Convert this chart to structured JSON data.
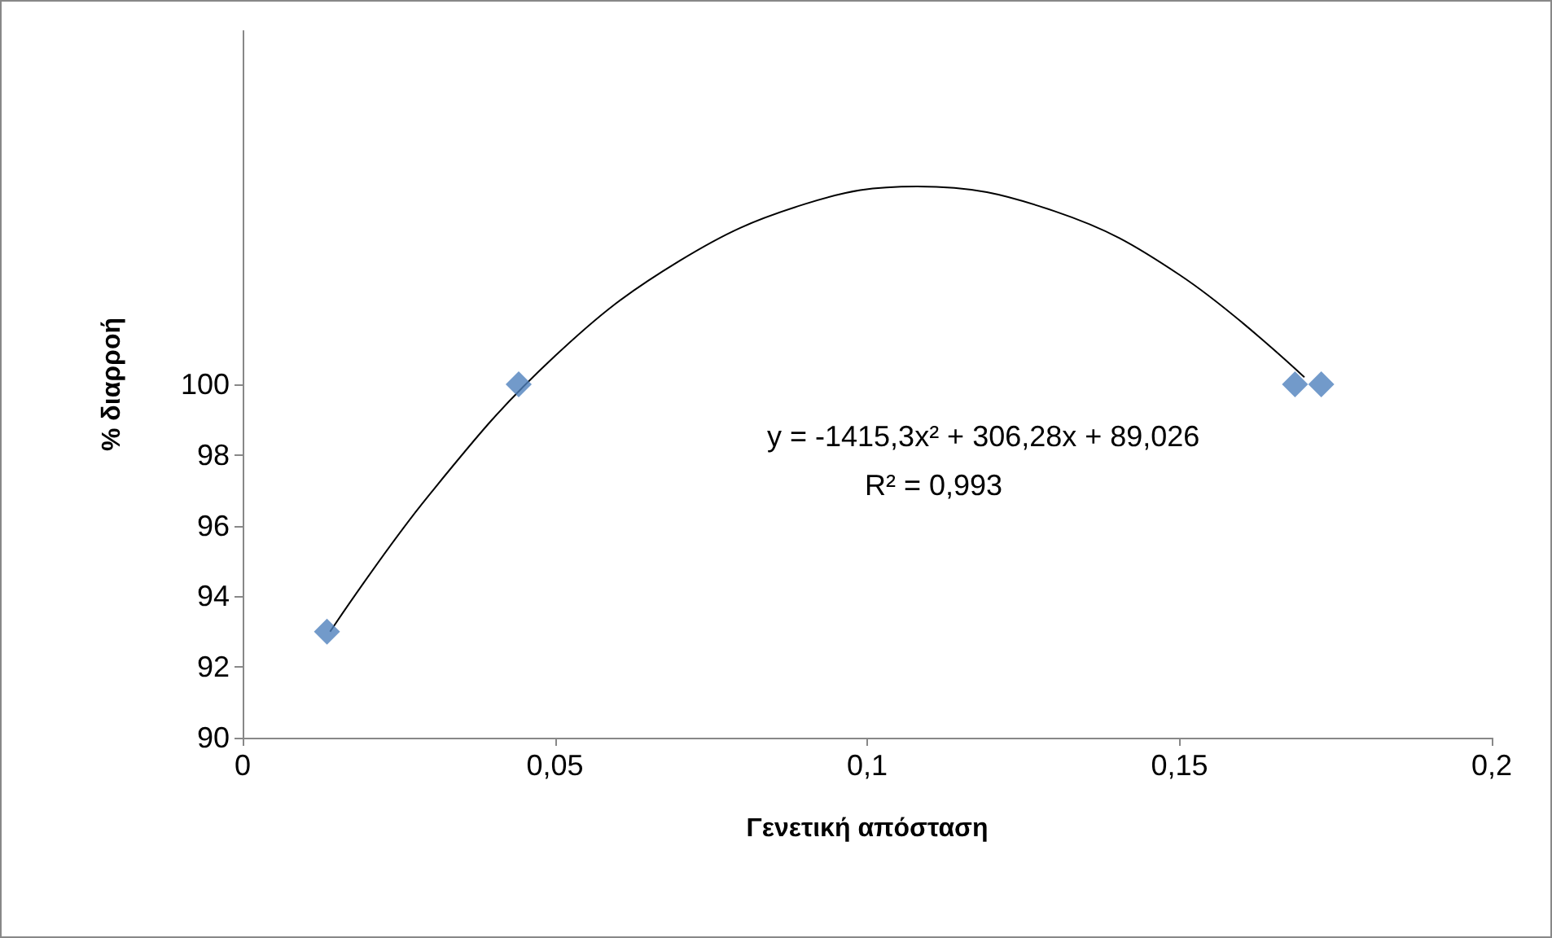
{
  "chart_data": {
    "type": "scatter",
    "xlabel": "Γενετική απόσταση",
    "ylabel": "% διαρροή",
    "xlim": [
      0,
      0.2
    ],
    "xticks": [
      {
        "value": 0,
        "label": "0"
      },
      {
        "value": 0.05,
        "label": "0,05"
      },
      {
        "value": 0.1,
        "label": "0,1"
      },
      {
        "value": 0.15,
        "label": "0,15"
      },
      {
        "value": 0.2,
        "label": "0,2"
      }
    ],
    "ylim": [
      90,
      110
    ],
    "yticks": [
      90,
      92,
      94,
      96,
      98,
      100
    ],
    "series": [
      {
        "color": "#4f81bd",
        "marker": "diamond",
        "x": [
          0.0135,
          0.0442,
          0.1685,
          0.1727
        ],
        "values": [
          93,
          100,
          100,
          100
        ]
      },
      {
        "type": "line",
        "color": "#000000",
        "marker": "none",
        "x": [
          0.014,
          0.03,
          0.05,
          0.07,
          0.09,
          0.108,
          0.13,
          0.15,
          0.17
        ],
        "values": [
          93.0,
          96.9,
          100.8,
          103.5,
          105.1,
          105.6,
          104.9,
          103.1,
          100.2
        ]
      }
    ],
    "annotations": [
      "y = -1415,3x² + 306,28x + 89,026",
      "R² = 0,993"
    ],
    "grid": false
  }
}
